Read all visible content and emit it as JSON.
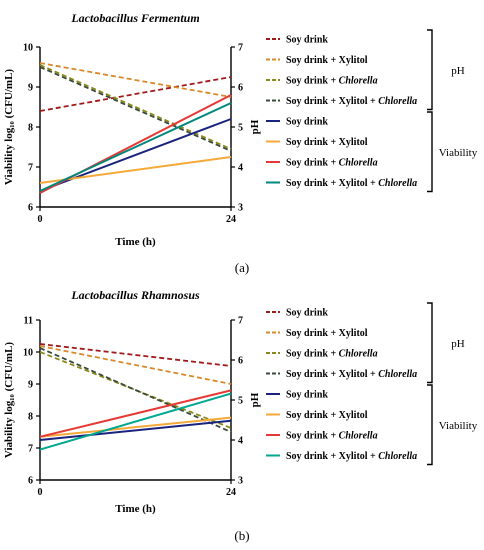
{
  "chart_data": [
    {
      "type": "line",
      "panel_label": "(a)",
      "title": "Lactobacillus Fermentum",
      "xlabel": "Time (h)",
      "ylabel": "Viability log₁₀ (CFU/mL)",
      "y2label": "pH",
      "x": [
        0,
        24
      ],
      "xticks": [
        "0",
        "24"
      ],
      "ylim": [
        6,
        10
      ],
      "yticks": [
        "6",
        "7",
        "8",
        "9",
        "10"
      ],
      "y2lim": [
        3,
        7
      ],
      "y2ticks": [
        "3",
        "4",
        "5",
        "6",
        "7"
      ],
      "legend_groups": [
        "pH",
        "Viability"
      ],
      "series": [
        {
          "name": "Soy drink",
          "italic": "",
          "group": "pH",
          "axis": "right",
          "style": "dashed",
          "color": "#a01a1a",
          "values": [
            5.4,
            6.25
          ]
        },
        {
          "name": "Soy drink + Xylitol",
          "italic": "",
          "group": "pH",
          "axis": "right",
          "style": "dashed",
          "color": "#d9882a",
          "values": [
            6.6,
            5.75
          ]
        },
        {
          "name": "Soy drink + ",
          "italic": "Chlorella",
          "group": "pH",
          "axis": "right",
          "style": "dashed",
          "color": "#8a8a1a",
          "values": [
            6.55,
            4.45
          ]
        },
        {
          "name": "Soy drink + Xylitol + ",
          "italic": "Chlorella",
          "group": "pH",
          "axis": "right",
          "style": "dashed",
          "color": "#3a4a3a",
          "values": [
            6.5,
            4.4
          ]
        },
        {
          "name": "Soy drink",
          "italic": "",
          "group": "Viability",
          "axis": "left",
          "style": "solid",
          "color": "#1a237e",
          "values": [
            6.4,
            8.2
          ]
        },
        {
          "name": "Soy drink + Xylitol",
          "italic": "",
          "group": "Viability",
          "axis": "left",
          "style": "solid",
          "color": "#f5a93a",
          "values": [
            6.6,
            7.25
          ]
        },
        {
          "name": "Soy drink + ",
          "italic": "Chlorella",
          "group": "Viability",
          "axis": "left",
          "style": "solid",
          "color": "#e53935",
          "values": [
            6.35,
            8.8
          ]
        },
        {
          "name": "Soy drink + Xylitol + ",
          "italic": "Chlorella",
          "group": "Viability",
          "axis": "left",
          "style": "solid",
          "color": "#00897b",
          "values": [
            6.4,
            8.6
          ]
        }
      ]
    },
    {
      "type": "line",
      "panel_label": "(b)",
      "title": "Lactobacillus Rhamnosus",
      "xlabel": "Time (h)",
      "ylabel": "Viability log₁₀ (CFU/mL)",
      "y2label": "pH",
      "x": [
        0,
        24
      ],
      "xticks": [
        "0",
        "24"
      ],
      "ylim": [
        6,
        11
      ],
      "yticks": [
        "6",
        "7",
        "8",
        "9",
        "10",
        "11"
      ],
      "y2lim": [
        3,
        7
      ],
      "y2ticks": [
        "3",
        "4",
        "5",
        "6",
        "7"
      ],
      "legend_groups": [
        "pH",
        "Viability"
      ],
      "series": [
        {
          "name": "Soy drink",
          "italic": "",
          "group": "pH",
          "axis": "right",
          "style": "dashed",
          "color": "#a01a1a",
          "values": [
            6.4,
            5.85
          ]
        },
        {
          "name": "Soy drink + Xylitol",
          "italic": "",
          "group": "pH",
          "axis": "right",
          "style": "dashed",
          "color": "#d9882a",
          "values": [
            6.35,
            5.4
          ]
        },
        {
          "name": "Soy drink + ",
          "italic": "Chlorella",
          "group": "pH",
          "axis": "right",
          "style": "dashed",
          "color": "#8a8a1a",
          "values": [
            6.2,
            4.3
          ]
        },
        {
          "name": "Soy drink + Xylitol + ",
          "italic": "Chlorella",
          "group": "pH",
          "axis": "right",
          "style": "dashed",
          "color": "#3a4a3a",
          "values": [
            6.3,
            4.2
          ]
        },
        {
          "name": "Soy drink",
          "italic": "",
          "group": "Viability",
          "axis": "left",
          "style": "solid",
          "color": "#1a237e",
          "values": [
            7.25,
            7.85
          ]
        },
        {
          "name": "Soy drink + Xylitol",
          "italic": "",
          "group": "Viability",
          "axis": "left",
          "style": "solid",
          "color": "#f5a93a",
          "values": [
            7.35,
            7.95
          ]
        },
        {
          "name": "Soy drink + ",
          "italic": "Chlorella",
          "group": "Viability",
          "axis": "left",
          "style": "solid",
          "color": "#e53935",
          "values": [
            7.35,
            8.8
          ]
        },
        {
          "name": "Soy drink + Xylitol + ",
          "italic": "Chlorella",
          "group": "Viability",
          "axis": "left",
          "style": "solid",
          "color": "#00a88f",
          "values": [
            6.95,
            8.7
          ]
        }
      ]
    }
  ]
}
